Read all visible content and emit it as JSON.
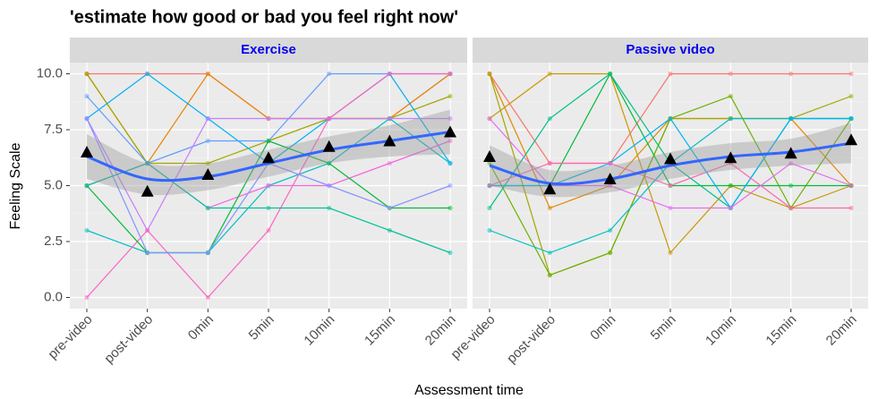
{
  "chart_data": {
    "type": "line",
    "title": "'estimate how good or bad you feel right now'",
    "xlabel": "Assessment time",
    "ylabel": "Feeling Scale",
    "categories": [
      "pre-video",
      "post-video",
      "0min",
      "5min",
      "10min",
      "15min",
      "20min"
    ],
    "ylim": [
      -0.5,
      10.5
    ],
    "yticks": [
      {
        "value": 0,
        "label": "0.0"
      },
      {
        "value": 2.5,
        "label": "2.5"
      },
      {
        "value": 5,
        "label": "5.0"
      },
      {
        "value": 7.5,
        "label": "7.5"
      },
      {
        "value": 10,
        "label": "10.0"
      }
    ],
    "grid": true,
    "panels": [
      {
        "title": "Exercise",
        "series": [
          {
            "color": "#F8766D",
            "values": [
              10,
              10,
              10,
              8,
              8,
              8,
              10
            ]
          },
          {
            "color": "#E58700",
            "values": [
              10,
              6,
              10,
              8,
              8,
              8,
              10
            ]
          },
          {
            "color": "#A3A500",
            "values": [
              10,
              6,
              6,
              7,
              8,
              8,
              9
            ]
          },
          {
            "color": "#00BFC4",
            "values": [
              3,
              2,
              2,
              5,
              6,
              8,
              6
            ]
          },
          {
            "color": "#00B0F6",
            "values": [
              8,
              10,
              8,
              6,
              8,
              10,
              6
            ]
          },
          {
            "color": "#619CFF",
            "values": [
              9,
              6,
              7,
              7,
              10,
              10,
              10
            ]
          },
          {
            "color": "#C77CFF",
            "values": [
              8,
              3,
              8,
              8,
              8,
              8,
              8
            ]
          },
          {
            "color": "#FF61C3",
            "values": [
              0,
              3,
              0,
              3,
              8,
              10,
              10
            ]
          },
          {
            "color": "#F564E3",
            "values": [
              5,
              6,
              4,
              5,
              5,
              6,
              7
            ]
          },
          {
            "color": "#00BA38",
            "values": [
              5,
              2,
              2,
              7,
              6,
              4,
              4
            ]
          },
          {
            "color": "#8494FF",
            "values": [
              8,
              2,
              2,
              6,
              5,
              4,
              5
            ]
          },
          {
            "color": "#00C19A",
            "values": [
              5,
              6,
              4,
              4,
              4,
              3,
              2
            ]
          }
        ],
        "means": [
          6.5,
          4.75,
          5.5,
          6.25,
          6.75,
          7.0,
          7.4
        ],
        "smooth": [
          6.3,
          5.3,
          5.4,
          6.0,
          6.6,
          7.0,
          7.4
        ],
        "smooth_low": [
          5.3,
          4.6,
          4.8,
          5.4,
          6.0,
          6.3,
          6.4
        ],
        "smooth_high": [
          7.3,
          6.0,
          6.0,
          6.6,
          7.2,
          7.7,
          8.4
        ]
      },
      {
        "title": "Passive video",
        "series": [
          {
            "color": "#F8766D",
            "values": [
              10,
              6,
              6,
              10,
              10,
              10,
              10
            ]
          },
          {
            "color": "#E58700",
            "values": [
              10,
              4,
              5,
              8,
              8,
              8,
              5
            ]
          },
          {
            "color": "#C99800",
            "values": [
              8,
              10,
              10,
              2,
              5,
              4,
              5
            ]
          },
          {
            "color": "#A3A500",
            "values": [
              10,
              1,
              2,
              8,
              8,
              8,
              9
            ]
          },
          {
            "color": "#6BB100",
            "values": [
              6,
              1,
              2,
              8,
              9,
              4,
              8
            ]
          },
          {
            "color": "#00BA38",
            "values": [
              5,
              5,
              10,
              5,
              5,
              5,
              5
            ]
          },
          {
            "color": "#00C08B",
            "values": [
              4,
              8,
              10,
              6,
              4,
              8,
              8
            ]
          },
          {
            "color": "#00BFC4",
            "values": [
              3,
              2,
              3,
              6,
              8,
              8,
              8
            ]
          },
          {
            "color": "#00B4F0",
            "values": [
              5,
              5,
              6,
              8,
              4,
              8,
              8
            ]
          },
          {
            "color": "#FF64B0",
            "values": [
              5,
              6,
              6,
              5,
              6,
              4,
              4
            ]
          },
          {
            "color": "#E76BF3",
            "values": [
              8,
              5,
              5,
              4,
              4,
              6,
              5
            ]
          }
        ],
        "means": [
          6.3,
          4.85,
          5.3,
          6.2,
          6.25,
          6.45,
          7.05
        ],
        "smooth": [
          5.9,
          5.1,
          5.3,
          5.9,
          6.3,
          6.5,
          6.9
        ],
        "smooth_low": [
          5.0,
          4.5,
          4.7,
          5.3,
          5.7,
          5.9,
          6.0
        ],
        "smooth_high": [
          6.8,
          5.7,
          5.9,
          6.5,
          6.9,
          7.1,
          7.8
        ]
      }
    ]
  }
}
